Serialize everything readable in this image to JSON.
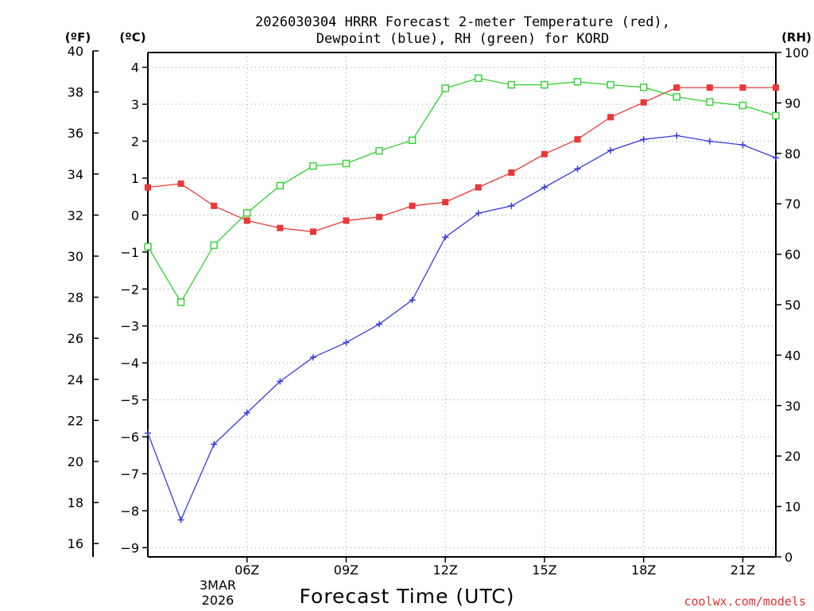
{
  "chart_data": {
    "type": "line",
    "title_line1": "2026030304 HRRR Forecast 2-meter Temperature (red),",
    "title_line2": "Dewpoint (blue), RH (green) for KORD",
    "xlabel": "Forecast Time (UTC)",
    "credit": "coolwx.com/models",
    "unit_left_f": "(ºF)",
    "unit_left_c": "(ºC)",
    "unit_right": "(RH)",
    "date_label_line1": "3MAR",
    "date_label_line2": "2026",
    "x_hours": [
      3,
      4,
      5,
      6,
      7,
      8,
      9,
      10,
      11,
      12,
      13,
      14,
      15,
      16,
      17,
      18,
      19,
      20,
      21,
      22
    ],
    "xlim": [
      3,
      22
    ],
    "x_ticks": [
      {
        "hour": 6,
        "label": "06Z"
      },
      {
        "hour": 9,
        "label": "09Z"
      },
      {
        "hour": 12,
        "label": "12Z"
      },
      {
        "hour": 15,
        "label": "15Z"
      },
      {
        "hour": 18,
        "label": "18Z"
      },
      {
        "hour": 21,
        "label": "21Z"
      }
    ],
    "ylim_c": [
      -9.25,
      4.4
    ],
    "y_ticks_c": [
      4,
      3,
      2,
      1,
      0,
      -1,
      -2,
      -3,
      -4,
      -5,
      -6,
      -7,
      -8,
      -9
    ],
    "y_tick_labels_c": [
      "4",
      "3",
      "2",
      "1",
      "0",
      "−1",
      "−2",
      "−3",
      "−4",
      "−5",
      "−6",
      "−7",
      "−8",
      "−9"
    ],
    "y_ticks_f": [
      40,
      38,
      36,
      34,
      32,
      30,
      28,
      26,
      24,
      22,
      20,
      18,
      16
    ],
    "y_tick_labels_f": [
      "40",
      "38",
      "36",
      "34",
      "32",
      "30",
      "28",
      "26",
      "24",
      "22",
      "20",
      "18",
      "16"
    ],
    "ylim_rh": [
      0,
      100
    ],
    "y_ticks_rh": [
      100,
      90,
      80,
      70,
      60,
      50,
      40,
      30,
      20,
      10,
      0
    ],
    "y_tick_labels_rh": [
      "100",
      "90",
      "80",
      "70",
      "60",
      "50",
      "40",
      "30",
      "20",
      "10",
      "0"
    ],
    "series": [
      {
        "name": "Temperature",
        "axis": "c",
        "color": "#e83838",
        "marker": "filled-square",
        "values": [
          0.75,
          0.85,
          0.25,
          -0.15,
          -0.35,
          -0.45,
          -0.15,
          -0.05,
          0.25,
          0.35,
          0.75,
          1.15,
          1.65,
          2.05,
          2.65,
          3.05,
          3.45,
          3.45,
          3.45,
          3.45
        ]
      },
      {
        "name": "Dewpoint",
        "axis": "c",
        "color": "#3a3ae0",
        "marker": "plus",
        "values": [
          -5.9,
          -8.25,
          -6.2,
          -5.35,
          -4.5,
          -3.85,
          -3.45,
          -2.95,
          -2.3,
          -0.6,
          0.05,
          0.25,
          0.75,
          1.25,
          1.75,
          2.05,
          2.15,
          2.0,
          1.9,
          1.55
        ]
      },
      {
        "name": "RH",
        "axis": "rh",
        "color": "#30d030",
        "marker": "open-square",
        "values": [
          61.5,
          50.5,
          61.8,
          68.2,
          73.6,
          77.5,
          78.0,
          80.5,
          82.6,
          92.9,
          94.9,
          93.6,
          93.6,
          94.2,
          93.6,
          93.1,
          91.2,
          90.2,
          89.5,
          87.5
        ]
      }
    ]
  }
}
